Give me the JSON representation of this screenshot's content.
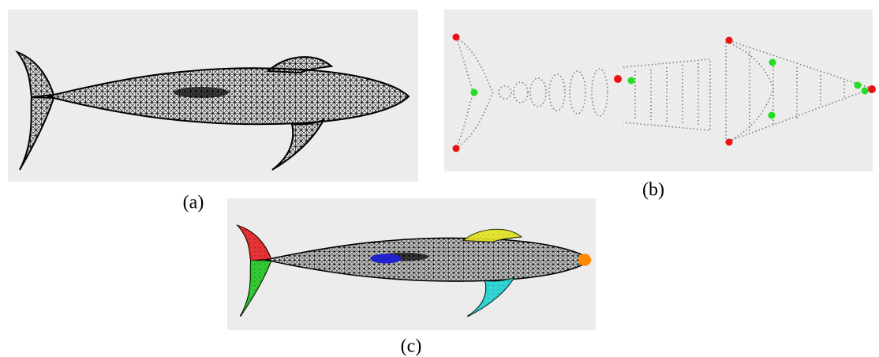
{
  "figure": {
    "labels": [
      "(a)",
      "(b)",
      "(c)"
    ]
  }
}
